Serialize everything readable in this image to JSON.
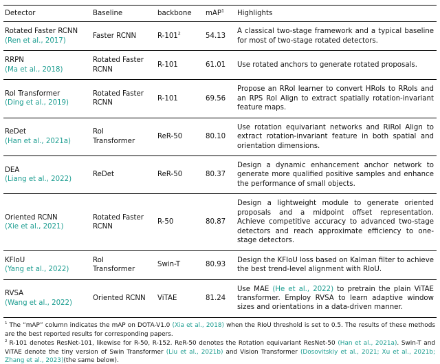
{
  "colors": {
    "cite": "#1a9c8f",
    "text": "#111111",
    "rule": "#000000"
  },
  "table": {
    "headers": {
      "detector": "Detector",
      "baseline": "Baseline",
      "backbone": "backbone",
      "map": "mAP",
      "map_sup": "1",
      "highlights": "Highlights"
    },
    "rows": [
      {
        "detector": "Rotated Faster RCNN",
        "detector_cite": "(Ren et al., 2017)",
        "baseline": "Faster RCNN",
        "backbone": "R-101",
        "backbone_sup": "2",
        "map": "54.13",
        "highlight": "A classical two-stage framework and a typical baseline for most of two-stage rotated detectors."
      },
      {
        "detector": "RRPN",
        "detector_cite": "(Ma et al., 2018)",
        "baseline": "Rotated Faster RCNN",
        "backbone": "R-101",
        "map": "61.01",
        "highlight": "Use rotated anchors to generate rotated proposals."
      },
      {
        "detector": "RoI Transformer",
        "detector_cite": "(Ding et al., 2019)",
        "baseline": "Rotated Faster RCNN",
        "backbone": "R-101",
        "map": "69.56",
        "highlight": "Propose an RRoI learner to convert HRoIs to RRoIs and an RPS RoI Align to extract spatially rotation-invariant feature maps."
      },
      {
        "detector": "ReDet",
        "detector_cite": "(Han et al., 2021a)",
        "baseline": "RoI Transformer",
        "backbone": "ReR-50",
        "map": "80.10",
        "highlight": "Use rotation equivariant networks and RiRoI Align to extract rotation-invariant feature in both spatial and orientation dimensions."
      },
      {
        "detector": "DEA",
        "detector_cite": "(Liang et al., 2022)",
        "baseline": "ReDet",
        "backbone": "ReR-50",
        "map": "80.37",
        "highlight": "Design a dynamic enhancement anchor network to generate more qualified positive samples and enhance the performance of small objects."
      },
      {
        "detector": "Oriented RCNN",
        "detector_cite": "(Xie et al., 2021)",
        "baseline": "Rotated Faster RCNN",
        "backbone": "R-50",
        "map": "80.87",
        "highlight": "Design a lightweight module to generate oriented proposals and a midpoint offset representation. Achieve competitive accuracy to advanced two-stage detectors and reach approximate efficiency to one-stage detectors."
      },
      {
        "detector": "KFIoU",
        "detector_cite": "(Yang et al., 2022)",
        "baseline": "RoI Transformer",
        "backbone": "Swin-T",
        "map": "80.93",
        "highlight": "Design the KFIoU loss based on Kalman filter to achieve the best trend-level alignment with RIoU."
      },
      {
        "detector": "RVSA",
        "detector_cite": "(Wang et al., 2022)",
        "baseline": "Oriented RCNN",
        "backbone": "ViTAE",
        "map": "81.24",
        "highlight_pre": "Use MAE ",
        "highlight_cite": "(He et al., 2022)",
        "highlight_post": " to pretrain the plain ViTAE transformer. Employ RVSA to learn adaptive window sizes and orientations in a data-driven manner."
      }
    ]
  },
  "footnotes": {
    "fn1": {
      "marker": "1",
      "seg0": "The “mAP” column indicates the mAP on DOTA-V1.0 ",
      "cite0": "(Xia et al., 2018)",
      "seg1": " when the RIoU threshold is set to 0.5. The results of these methods are the best reported results for corresponding papers."
    },
    "fn2": {
      "marker": "2",
      "seg0": "R-101 denotes ResNet-101, likewise for R-50, R-152. ReR-50 denotes the Rotation equivariant ResNet-50 ",
      "cite0": "(Han et al., 2021a)",
      "seg1": ". Swin-T and ViTAE denote the tiny version of Swin Transformer ",
      "cite1": "(Liu et al., 2021b)",
      "seg2": " and Vision Transformer ",
      "cite2": "(Dosovitskiy et al., 2021; Xu et al., 2021b; Zhang et al., 2023)",
      "seg3": "(the same below)."
    }
  }
}
